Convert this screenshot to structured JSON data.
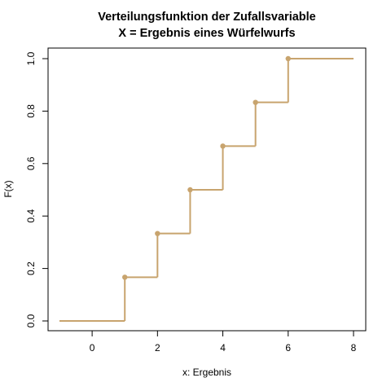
{
  "chart_data": {
    "type": "line",
    "subtype": "step",
    "title": "Verteilungsfunktion der Zufallsvariable",
    "subtitle": "X = Ergebnis eines Würfelwurfs",
    "xlabel": "x: Ergebnis",
    "ylabel": "F(x)",
    "xlim": [
      -1,
      8
    ],
    "ylim": [
      0,
      1
    ],
    "xticks": [
      0,
      2,
      4,
      6,
      8
    ],
    "xtick_labels": [
      "0",
      "2",
      "4",
      "6",
      "8"
    ],
    "yticks": [
      0,
      0.2,
      0.4,
      0.6,
      0.8,
      1.0
    ],
    "ytick_labels": [
      "0.0",
      "0.2",
      "0.4",
      "0.6",
      "0.8",
      "1.0"
    ],
    "grid": false,
    "color": "#c8a46e",
    "steps": [
      {
        "x_start": -1,
        "x_end": 1,
        "y": 0
      },
      {
        "x_start": 1,
        "x_end": 2,
        "y": 0.1667
      },
      {
        "x_start": 2,
        "x_end": 3,
        "y": 0.3333
      },
      {
        "x_start": 3,
        "x_end": 4,
        "y": 0.5
      },
      {
        "x_start": 4,
        "x_end": 5,
        "y": 0.6667
      },
      {
        "x_start": 5,
        "x_end": 6,
        "y": 0.8333
      },
      {
        "x_start": 6,
        "x_end": 8,
        "y": 1.0
      }
    ],
    "points": [
      {
        "x": 1,
        "y": 0.1667
      },
      {
        "x": 2,
        "y": 0.3333
      },
      {
        "x": 3,
        "y": 0.5
      },
      {
        "x": 4,
        "y": 0.6667
      },
      {
        "x": 5,
        "y": 0.8333
      },
      {
        "x": 6,
        "y": 1.0
      }
    ]
  }
}
